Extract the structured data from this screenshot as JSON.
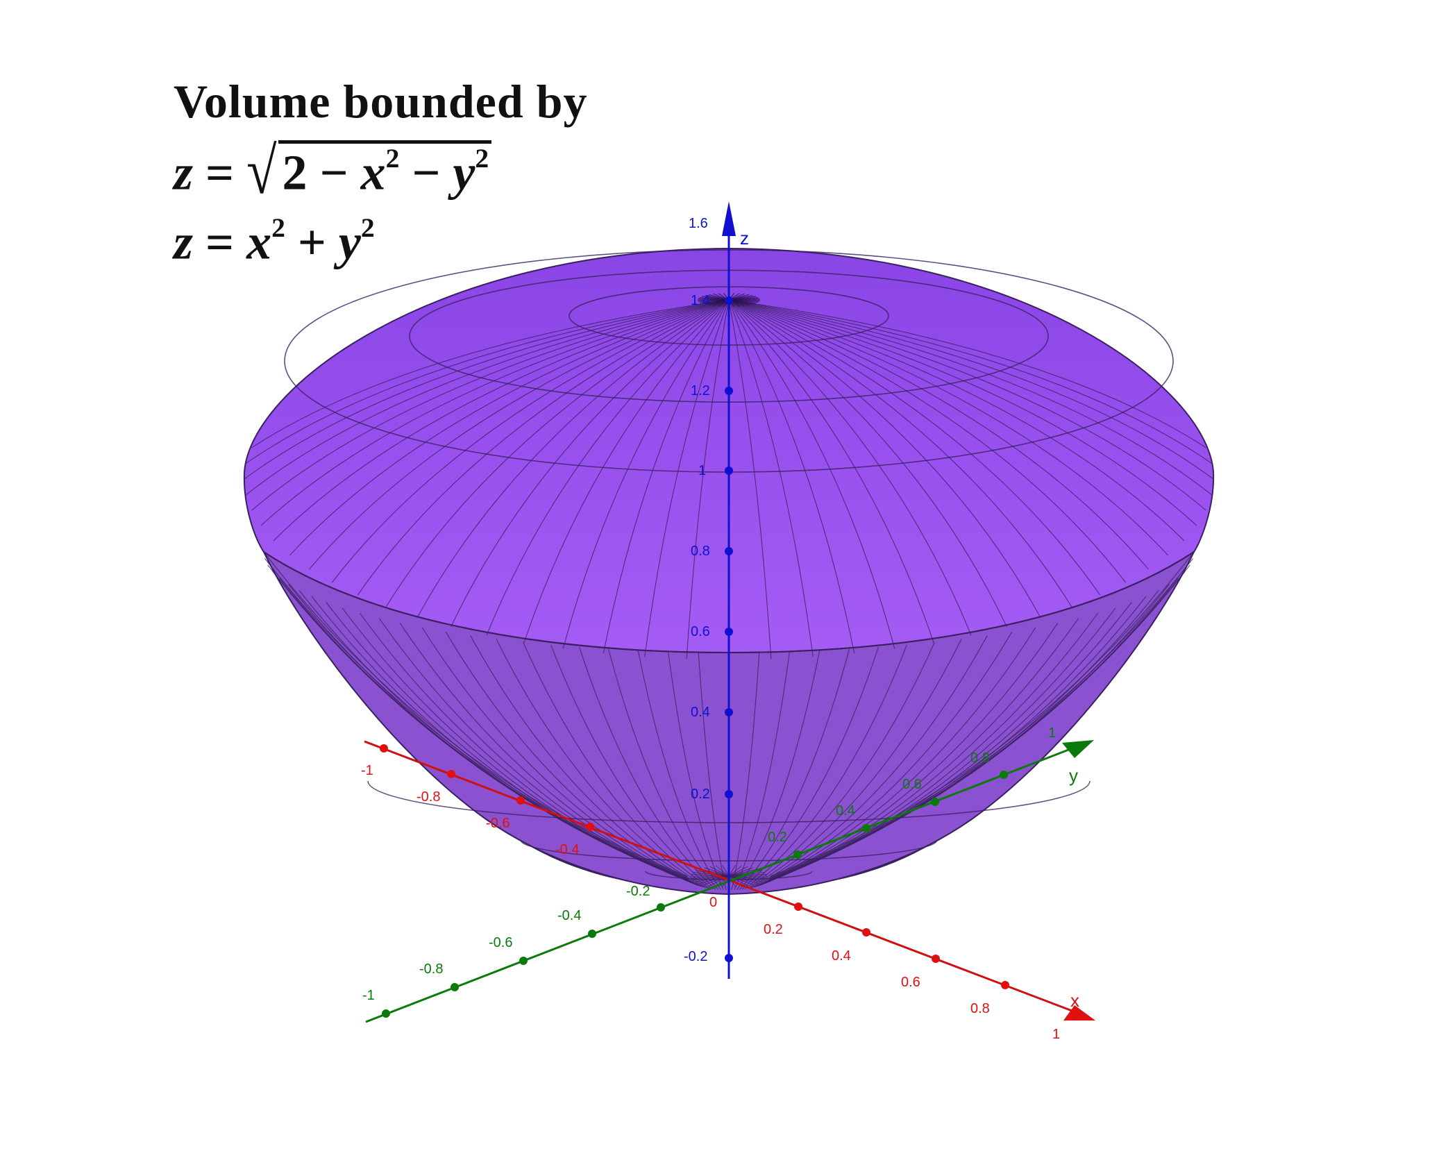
{
  "title": {
    "line1": "Volume bounded by",
    "eq1": {
      "lhs": "z",
      "eq": "=",
      "radicand_const": "2",
      "minus": "−",
      "x": "x",
      "y": "y",
      "exp": "2"
    },
    "eq2": {
      "lhs": "z",
      "eq": "=",
      "x": "x",
      "plus": "+",
      "y": "y",
      "exp": "2"
    }
  },
  "axes": {
    "x": {
      "name": "x",
      "color": "#e01010",
      "ticks": [
        "-1",
        "-0.8",
        "-0.6",
        "-0.4",
        "0.2",
        "0.4",
        "0.6",
        "0.8",
        "1"
      ]
    },
    "y": {
      "name": "y",
      "color": "#0a7a0a",
      "ticks": [
        "-1",
        "-0.8",
        "-0.6",
        "-0.4",
        "-0.2",
        "0.2",
        "0.4",
        "0.6",
        "0.8",
        "1"
      ]
    },
    "z": {
      "name": "z",
      "color": "#1010d0",
      "ticks": [
        "-0.2",
        "0.2",
        "0.4",
        "0.6",
        "0.8",
        "1",
        "1.2",
        "1.4",
        "1.6"
      ]
    },
    "origin": "0"
  },
  "solid": {
    "fill": "#9b55f0",
    "edge": "#3a2060"
  }
}
